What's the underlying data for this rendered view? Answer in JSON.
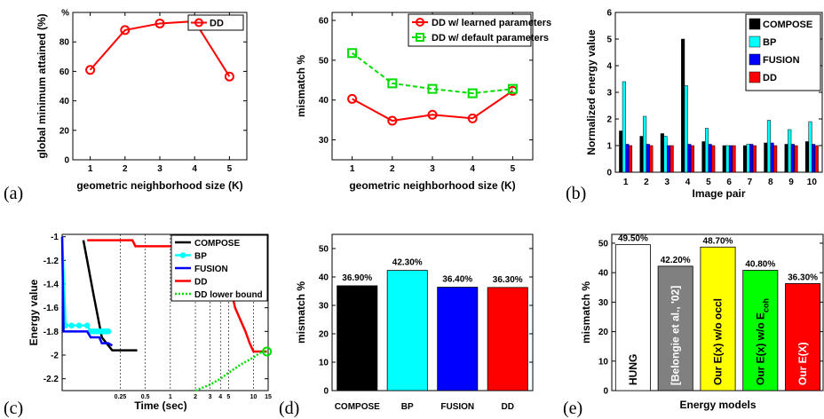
{
  "chart_data": [
    {
      "panel": "(a)",
      "type": "line",
      "title": "",
      "xlabel": "geometric neighborhood size (K)",
      "ylabel": "global minimum attained (%)",
      "x": [
        1,
        2,
        3,
        4,
        5
      ],
      "xlim": [
        0.5,
        5.5
      ],
      "ylim": [
        0,
        100
      ],
      "yticks": [
        0,
        20,
        40,
        60,
        80,
        100
      ],
      "ytick_labels": [
        "0",
        "20",
        "40",
        "60",
        "80",
        "%"
      ],
      "series": [
        {
          "name": "DD",
          "values": [
            61,
            88,
            92.5,
            94,
            56.5
          ],
          "color": "#ff0000",
          "marker": "circle",
          "style": "solid"
        }
      ],
      "legend": "top-right",
      "grid": false
    },
    {
      "panel": "",
      "type": "line",
      "title": "",
      "xlabel": "geometric neighborhood size (K)",
      "ylabel": "mismatch %",
      "x": [
        1,
        2,
        3,
        4,
        5
      ],
      "xlim": [
        0.5,
        5.5
      ],
      "ylim": [
        25,
        62
      ],
      "yticks": [
        30,
        40,
        50,
        60
      ],
      "series": [
        {
          "name": "DD w/ learned parameters",
          "values": [
            40.3,
            34.8,
            36.3,
            35.4,
            42.3
          ],
          "color": "#ff0000",
          "marker": "circle",
          "style": "solid"
        },
        {
          "name": "DD w/ default parameters",
          "values": [
            51.8,
            44.2,
            42.8,
            41.7,
            42.8
          ],
          "color": "#00dd00",
          "marker": "square",
          "style": "dashed"
        }
      ],
      "legend": "top-right",
      "grid": false
    },
    {
      "panel": "(b)",
      "type": "bar",
      "title": "",
      "xlabel": "Image pair",
      "ylabel": "Normalized energy value",
      "categories": [
        "1",
        "2",
        "3",
        "4",
        "5",
        "6",
        "7",
        "8",
        "9",
        "10"
      ],
      "ylim": [
        0,
        6
      ],
      "yticks": [
        0,
        1,
        2,
        3,
        4,
        5,
        6
      ],
      "series": [
        {
          "name": "COMPOSE",
          "color": "#000000",
          "values": [
            1.55,
            1.35,
            1.45,
            5.0,
            1.15,
            1.0,
            1.0,
            1.1,
            1.05,
            1.15
          ]
        },
        {
          "name": "BP",
          "color": "#00ffff",
          "values": [
            3.4,
            2.1,
            1.35,
            3.25,
            1.65,
            1.0,
            1.05,
            1.95,
            1.6,
            1.9
          ]
        },
        {
          "name": "FUSION",
          "color": "#0000ff",
          "values": [
            1.05,
            1.05,
            1.0,
            1.05,
            1.05,
            1.0,
            1.05,
            1.1,
            1.05,
            1.05
          ]
        },
        {
          "name": "DD",
          "color": "#ff0000",
          "values": [
            1.0,
            1.0,
            1.0,
            1.0,
            1.0,
            1.0,
            1.0,
            1.0,
            1.0,
            1.0
          ]
        }
      ],
      "legend": "top-right",
      "grid": false
    },
    {
      "panel": "(c)",
      "type": "line",
      "title": "",
      "xlabel": "Time (sec)",
      "ylabel": "Energy value",
      "x_scale": "log",
      "xlim": [
        0.05,
        15
      ],
      "ylim": [
        -2.3,
        -0.98
      ],
      "yticks": [
        -2.2,
        -2,
        -1.8,
        -1.6,
        -1.4,
        -1.2,
        -1
      ],
      "xticks": [
        0.25,
        0.5,
        1,
        2,
        3,
        4,
        5,
        10,
        15
      ],
      "xtick_labels": [
        "0.25",
        "0.5",
        "1",
        "2",
        "3",
        "4",
        "5",
        "10",
        "15"
      ],
      "series": [
        {
          "name": "COMPOSE",
          "color": "#000000",
          "style": "solid",
          "x": [
            0.09,
            0.1,
            0.12,
            0.15,
            0.2,
            0.3,
            0.4
          ],
          "y": [
            -1.03,
            -1.2,
            -1.5,
            -1.85,
            -1.96,
            -1.96,
            -1.96
          ]
        },
        {
          "name": "BP",
          "color": "#00ffff",
          "style": "solid-dots",
          "x": [
            0.05,
            0.055,
            0.065,
            0.08,
            0.1,
            0.11,
            0.12,
            0.13,
            0.14,
            0.15,
            0.16,
            0.17,
            0.18
          ],
          "y": [
            -1.0,
            -1.75,
            -1.75,
            -1.75,
            -1.75,
            -1.8,
            -1.8,
            -1.8,
            -1.8,
            -1.8,
            -1.8,
            -1.8,
            -1.8
          ]
        },
        {
          "name": "FUSION",
          "color": "#0000ff",
          "style": "solid",
          "x": [
            0.05,
            0.052,
            0.055,
            0.06,
            0.1,
            0.11,
            0.14,
            0.15,
            0.18,
            0.2
          ],
          "y": [
            -1.0,
            -1.8,
            -1.8,
            -1.8,
            -1.8,
            -1.85,
            -1.85,
            -1.9,
            -1.9,
            -1.92
          ]
        },
        {
          "name": "DD",
          "color": "#ff0000",
          "style": "solid",
          "x": [
            0.1,
            0.35,
            0.38,
            0.5,
            5.0,
            5.2,
            6.0,
            8.0,
            9.0,
            10.0,
            12.0,
            14.5
          ],
          "y": [
            -1.03,
            -1.03,
            -1.08,
            -1.08,
            -1.08,
            -1.4,
            -1.6,
            -1.8,
            -1.9,
            -1.97,
            -1.97,
            -1.97
          ]
        },
        {
          "name": "DD lower bound",
          "color": "#00dd00",
          "style": "dotted",
          "x": [
            2.0,
            3.0,
            4.0,
            5.0,
            7.0,
            10.0,
            12.0,
            14.5
          ],
          "y": [
            -2.3,
            -2.25,
            -2.2,
            -2.15,
            -2.08,
            -2.02,
            -1.98,
            -1.97
          ]
        }
      ],
      "legend": "top-right",
      "grid": false
    },
    {
      "panel": "(d)",
      "type": "bar",
      "title": "",
      "xlabel": "",
      "ylabel": "mismatch %",
      "categories": [
        "COMPOSE",
        "BP",
        "FUSION",
        "DD"
      ],
      "values": [
        36.9,
        42.3,
        36.4,
        36.3
      ],
      "value_labels": [
        "36.90%",
        "42.30%",
        "36.40%",
        "36.30%"
      ],
      "colors": [
        "#000000",
        "#00ffff",
        "#0000ff",
        "#ff0000"
      ],
      "ylim": [
        0,
        55
      ],
      "yticks": [
        0,
        10,
        20,
        30,
        40,
        50
      ],
      "grid": false
    },
    {
      "panel": "(e)",
      "type": "bar",
      "title": "",
      "xlabel": "Energy models",
      "ylabel": "mismatch %",
      "categories": [
        "HUNG",
        "[Belongie et al., '02]",
        "Our E(x) w/o occl",
        "Our E(x) w/o E_coh",
        "Our E(X)"
      ],
      "values": [
        49.5,
        42.2,
        48.7,
        40.8,
        36.3
      ],
      "value_labels": [
        "49.50%",
        "42.20%",
        "48.70%",
        "40.80%",
        "36.30%"
      ],
      "colors": [
        "#ffffff",
        "#808080",
        "#ffff00",
        "#00ff00",
        "#ff0000"
      ],
      "ylim": [
        0,
        53
      ],
      "yticks": [
        0,
        10,
        20,
        30,
        40,
        50
      ],
      "grid": false
    }
  ]
}
